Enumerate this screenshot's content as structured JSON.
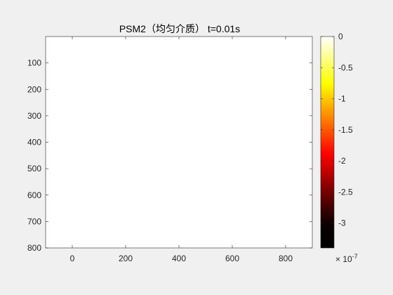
{
  "chart_data": {
    "type": "heatmap",
    "title": "PSM2（均匀介质）  t=0.01s",
    "xlabel": "",
    "ylabel": "",
    "xlim": [
      -100,
      900
    ],
    "ylim": [
      0,
      800
    ],
    "y_reversed": true,
    "x_ticks": [
      0,
      200,
      400,
      600,
      800
    ],
    "x_tick_labels": [
      "0",
      "200",
      "400",
      "600",
      "800"
    ],
    "y_ticks": [
      100,
      200,
      300,
      400,
      500,
      600,
      700,
      800
    ],
    "y_tick_labels": [
      "100",
      "200",
      "300",
      "400",
      "500",
      "600",
      "700",
      "800"
    ],
    "field_value": 0,
    "field_note": "image area rendered entirely at the top colour of the colormap (white)",
    "colorbar": {
      "colormap": "hot",
      "clim": [
        -3.4e-07,
        0
      ],
      "ticks": [
        0,
        -5e-08,
        -1e-07,
        -1.5e-07,
        -2e-07,
        -2.5e-07,
        -3e-07
      ],
      "tick_labels": [
        "0",
        "-0.5",
        "-1",
        "-1.5",
        "-2",
        "-2.5",
        "-3"
      ],
      "exponent_base": "× 10",
      "exponent": "-7",
      "color_stops": [
        "#000000",
        "#0a0000",
        "#550000",
        "#aa0000",
        "#ff0000",
        "#ff5500",
        "#ffaa00",
        "#ffff00",
        "#ffff80",
        "#ffffff"
      ]
    },
    "grid": false,
    "legend": "none"
  },
  "colors": {
    "figure_background": "#f0f0f0",
    "axes_background": "#ffffff",
    "axis_line": "#262626"
  }
}
